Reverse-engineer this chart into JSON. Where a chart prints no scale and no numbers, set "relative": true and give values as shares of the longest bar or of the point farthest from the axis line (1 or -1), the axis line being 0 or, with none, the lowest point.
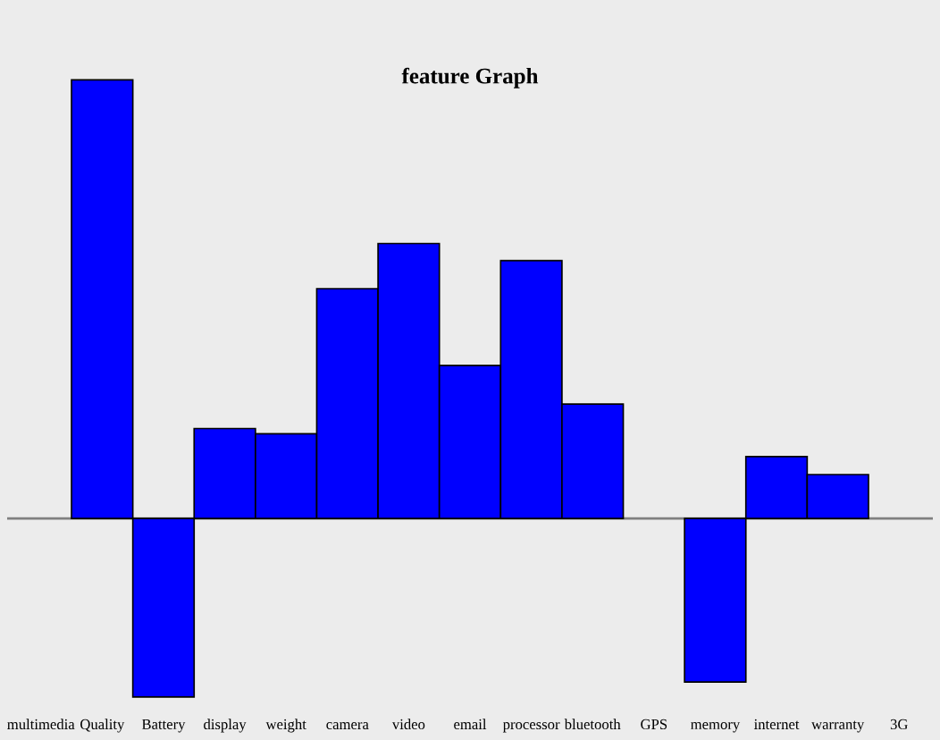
{
  "chart_data": {
    "type": "bar",
    "title": "feature Graph",
    "relative": true,
    "categories": [
      "multimedia",
      "Quality",
      "Battery",
      "display",
      "weight",
      "camera",
      "video",
      "email",
      "processor",
      "bluetooth",
      "GPS",
      "memory",
      "internet",
      "warranty",
      "3G"
    ],
    "values": [
      0,
      1,
      -0.407,
      0.205,
      0.193,
      0.524,
      0.627,
      0.349,
      0.588,
      0.261,
      0,
      -0.373,
      0.141,
      0.1,
      0
    ],
    "color": "#0000ff",
    "grid": false,
    "legend": false
  }
}
